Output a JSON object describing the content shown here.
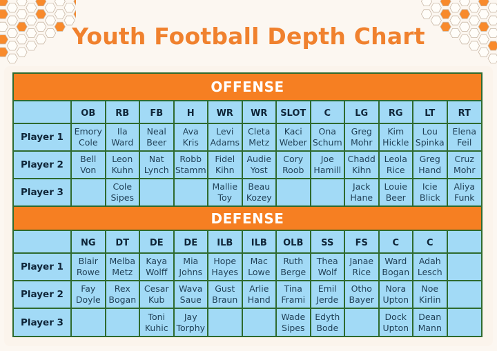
{
  "title": "Youth Football Depth Chart",
  "colors": {
    "title": "#f0812e",
    "section_bar": "#f67f22",
    "cell_bg": "#a2daf6",
    "grid_border": "#2e6a2e",
    "page_bg": "#fcf7f1",
    "hex_fill": "#f88a2c"
  },
  "offense": {
    "label": "OFFENSE",
    "positions": [
      "OB",
      "RB",
      "FB",
      "H",
      "WR",
      "WR",
      "SLOT",
      "C",
      "LG",
      "RG",
      "LT",
      "RT"
    ],
    "rows": [
      {
        "label": "Player 1",
        "cells": [
          [
            "Emory",
            "Cole"
          ],
          [
            "Ila",
            "Ward"
          ],
          [
            "Neal",
            "Beer"
          ],
          [
            "Ava",
            "Kris"
          ],
          [
            "Levi",
            "Adams"
          ],
          [
            "Cleta",
            "Metz"
          ],
          [
            "Kaci",
            "Weber"
          ],
          [
            "Ona",
            "Schum"
          ],
          [
            "Greg",
            "Mohr"
          ],
          [
            "Kim",
            "Hickle"
          ],
          [
            "Lou",
            "Spinka"
          ],
          [
            "Elena",
            "Feil"
          ]
        ]
      },
      {
        "label": "Player 2",
        "cells": [
          [
            "Bell",
            "Von"
          ],
          [
            "Leon",
            "Kuhn"
          ],
          [
            "Nat",
            "Lynch"
          ],
          [
            "Robb",
            "Stamm"
          ],
          [
            "Fidel",
            "Kihn"
          ],
          [
            "Audie",
            "Yost"
          ],
          [
            "Cory",
            "Roob"
          ],
          [
            "Joe",
            "Hamill"
          ],
          [
            "Chadd",
            "Kihn"
          ],
          [
            "Leola",
            "Rice"
          ],
          [
            "Greg",
            "Hand"
          ],
          [
            "Cruz",
            "Mohr"
          ]
        ]
      },
      {
        "label": "Player 3",
        "cells": [
          [
            "",
            ""
          ],
          [
            "Cole",
            "Sipes"
          ],
          [
            "",
            ""
          ],
          [
            "",
            ""
          ],
          [
            "Mallie",
            "Toy"
          ],
          [
            "Beau",
            "Kozey"
          ],
          [
            "",
            ""
          ],
          [
            "",
            ""
          ],
          [
            "Jack",
            "Hane"
          ],
          [
            "Louie",
            "Beer"
          ],
          [
            "Icie",
            "Blick"
          ],
          [
            "Aliya",
            "Funk"
          ]
        ]
      }
    ]
  },
  "defense": {
    "label": "DEFENSE",
    "positions": [
      "NG",
      "DT",
      "DE",
      "DE",
      "ILB",
      "ILB",
      "OLB",
      "SS",
      "FS",
      "C",
      "C",
      ""
    ],
    "rows": [
      {
        "label": "Player 1",
        "cells": [
          [
            "Blair",
            "Rowe"
          ],
          [
            "Melba",
            "Metz"
          ],
          [
            "Kaya",
            "Wolff"
          ],
          [
            "Mia",
            "Johns"
          ],
          [
            "Hope",
            "Hayes"
          ],
          [
            "Mac",
            "Lowe"
          ],
          [
            "Ruth",
            "Berge"
          ],
          [
            "Thea",
            "Wolf"
          ],
          [
            "Janae",
            "Rice"
          ],
          [
            "Ward",
            "Bogan"
          ],
          [
            "Adah",
            "Lesch"
          ],
          [
            "",
            ""
          ]
        ]
      },
      {
        "label": "Player 2",
        "cells": [
          [
            "Fay",
            "Doyle"
          ],
          [
            "Rex",
            "Bogan"
          ],
          [
            "Cesar",
            "Kub"
          ],
          [
            "Wava",
            "Saue"
          ],
          [
            "Gust",
            "Braun"
          ],
          [
            "Arlie",
            "Hand"
          ],
          [
            "Tina",
            "Frami"
          ],
          [
            "Emil",
            "Jerde"
          ],
          [
            "Otho",
            "Bayer"
          ],
          [
            "Nora",
            "Upton"
          ],
          [
            "Noe",
            "Kirlin"
          ],
          [
            "",
            ""
          ]
        ]
      },
      {
        "label": "Player 3",
        "cells": [
          [
            "",
            ""
          ],
          [
            "",
            ""
          ],
          [
            "Toni",
            "Kuhic"
          ],
          [
            "Jay",
            "Torphy"
          ],
          [
            "",
            ""
          ],
          [
            "",
            ""
          ],
          [
            "Wade",
            "Sipes"
          ],
          [
            "Edyth",
            "Bode"
          ],
          [
            "",
            ""
          ],
          [
            "Dock",
            "Upton"
          ],
          [
            "Dean",
            "Mann"
          ],
          [
            "",
            ""
          ]
        ]
      }
    ]
  }
}
